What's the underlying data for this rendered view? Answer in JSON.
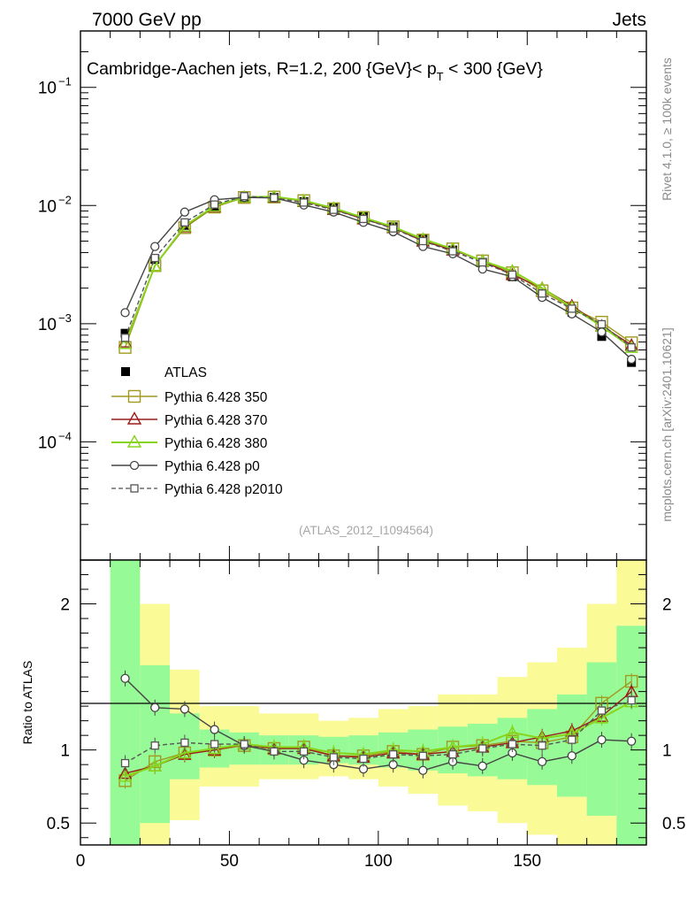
{
  "header": {
    "left": "7000 GeV pp",
    "right": "Jets"
  },
  "side_labels": {
    "rivet": "Rivet 4.1.0, ≥ 100k events",
    "mcplots": "mcplots.cern.ch [arXiv:2401.10621]"
  },
  "colors": {
    "data": "#000000",
    "py350": "#a09a1e",
    "py370": "#9b1a1a",
    "py380": "#86d51a",
    "p0": "#444444",
    "p2010": "#555555",
    "band_green": "#96fa96",
    "band_yellow": "#fafa96"
  },
  "chart_data": [
    {
      "type": "line",
      "title_parts": [
        "Cambridge-Aachen jets, R=1.2,  200 {GeV}< p",
        "T",
        " < 300 {GeV}"
      ],
      "analysis_label": "(ATLAS_2012_I1094564)",
      "yscale": "log",
      "xlim": [
        0,
        190
      ],
      "ylim": [
        1e-05,
        0.3
      ],
      "yticks": [
        {
          "value": 0.0001,
          "base": "10",
          "exp": "−4"
        },
        {
          "value": 0.001,
          "base": "10",
          "exp": "−3"
        },
        {
          "value": 0.01,
          "base": "10",
          "exp": "−2"
        },
        {
          "value": 0.1,
          "base": "10",
          "exp": "−1"
        }
      ],
      "x": [
        15,
        25,
        35,
        45,
        55,
        65,
        75,
        85,
        95,
        105,
        115,
        125,
        135,
        145,
        155,
        165,
        175,
        185
      ],
      "legend": [
        "ATLAS",
        "Pythia 6.428 350",
        "Pythia 6.428 370",
        "Pythia 6.428 380",
        "Pythia 6.428 p0",
        "Pythia 6.428 p2010"
      ],
      "series": [
        {
          "name": "ATLAS",
          "key": "data",
          "marker": "filled-square",
          "values": [
            0.00083,
            0.0035,
            0.0068,
            0.0098,
            0.0114,
            0.0117,
            0.0108,
            0.0097,
            0.0082,
            0.0066,
            0.0052,
            0.0042,
            0.0033,
            0.0025,
            0.0018,
            0.00125,
            0.00078,
            0.00047
          ]
        },
        {
          "name": "Pythia 6.428 350",
          "key": "py350",
          "marker": "open-square",
          "values": [
            0.00063,
            0.0031,
            0.0065,
            0.0097,
            0.0117,
            0.0118,
            0.011,
            0.0094,
            0.0079,
            0.0066,
            0.0051,
            0.0043,
            0.0034,
            0.0027,
            0.0019,
            0.00136,
            0.00103,
            0.00069
          ]
        },
        {
          "name": "Pythia 6.428 370",
          "key": "py370",
          "marker": "open-triangle",
          "values": [
            0.0007,
            0.0031,
            0.0066,
            0.0098,
            0.0118,
            0.0118,
            0.0109,
            0.0093,
            0.0077,
            0.0065,
            0.005,
            0.0042,
            0.0034,
            0.0026,
            0.002,
            0.00142,
            0.00096,
            0.00066
          ]
        },
        {
          "name": "Pythia 6.428 380",
          "key": "py380",
          "marker": "open-triangle",
          "values": [
            0.00068,
            0.0031,
            0.0067,
            0.0099,
            0.0118,
            0.0119,
            0.011,
            0.0095,
            0.0079,
            0.0066,
            0.0052,
            0.0043,
            0.0034,
            0.0028,
            0.002,
            0.00138,
            0.00095,
            0.00063
          ]
        },
        {
          "name": "Pythia 6.428 p0",
          "key": "p0",
          "marker": "open-circle",
          "values": [
            0.00124,
            0.0045,
            0.0088,
            0.0112,
            0.0117,
            0.0116,
            0.0101,
            0.0088,
            0.0072,
            0.006,
            0.0045,
            0.0039,
            0.0029,
            0.0025,
            0.00167,
            0.00121,
            0.00085,
            0.0005
          ]
        },
        {
          "name": "Pythia 6.428 p2010",
          "key": "p2010",
          "marker": "open-square-small",
          "dashed": true,
          "values": [
            0.00076,
            0.0036,
            0.0072,
            0.0102,
            0.012,
            0.0116,
            0.0106,
            0.0092,
            0.0077,
            0.0064,
            0.005,
            0.0041,
            0.0033,
            0.0026,
            0.0018,
            0.00134,
            0.00099,
            0.00063
          ]
        }
      ]
    },
    {
      "type": "line",
      "ylabel": "Ratio to ATLAS",
      "xlim": [
        0,
        190
      ],
      "ylim": [
        0.35,
        2.3
      ],
      "xticks": [
        0,
        50,
        100,
        150
      ],
      "yticks": [
        0.5,
        1,
        2
      ],
      "ytick_labels": [
        "0.5",
        "1",
        "2"
      ],
      "x": [
        15,
        25,
        35,
        45,
        55,
        65,
        75,
        85,
        95,
        105,
        115,
        125,
        135,
        145,
        155,
        165,
        175,
        185
      ],
      "bins": [
        [
          10,
          20
        ],
        [
          20,
          30
        ],
        [
          30,
          40
        ],
        [
          40,
          50
        ],
        [
          50,
          60
        ],
        [
          60,
          70
        ],
        [
          70,
          80
        ],
        [
          80,
          90
        ],
        [
          90,
          100
        ],
        [
          100,
          110
        ],
        [
          110,
          120
        ],
        [
          120,
          130
        ],
        [
          130,
          140
        ],
        [
          140,
          150
        ],
        [
          150,
          160
        ],
        [
          160,
          170
        ],
        [
          170,
          180
        ],
        [
          180,
          190
        ]
      ],
      "band_yellow": [
        [
          0.35,
          2.3
        ],
        [
          0.35,
          2.0
        ],
        [
          0.52,
          1.55
        ],
        [
          0.75,
          1.3
        ],
        [
          0.75,
          1.3
        ],
        [
          0.8,
          1.25
        ],
        [
          0.8,
          1.25
        ],
        [
          0.82,
          1.2
        ],
        [
          0.8,
          1.22
        ],
        [
          0.75,
          1.28
        ],
        [
          0.7,
          1.3
        ],
        [
          0.62,
          1.38
        ],
        [
          0.58,
          1.38
        ],
        [
          0.5,
          1.5
        ],
        [
          0.42,
          1.6
        ],
        [
          0.35,
          1.7
        ],
        [
          0.35,
          2.0
        ],
        [
          0.35,
          2.3
        ]
      ],
      "band_green": [
        [
          0.35,
          2.3
        ],
        [
          0.5,
          1.58
        ],
        [
          0.8,
          1.25
        ],
        [
          0.88,
          1.14
        ],
        [
          0.9,
          1.12
        ],
        [
          0.9,
          1.1
        ],
        [
          0.9,
          1.1
        ],
        [
          0.91,
          1.09
        ],
        [
          0.9,
          1.1
        ],
        [
          0.88,
          1.12
        ],
        [
          0.86,
          1.14
        ],
        [
          0.84,
          1.16
        ],
        [
          0.82,
          1.18
        ],
        [
          0.8,
          1.22
        ],
        [
          0.76,
          1.28
        ],
        [
          0.68,
          1.38
        ],
        [
          0.55,
          1.6
        ],
        [
          0.35,
          1.85
        ]
      ],
      "series": [
        {
          "name": "Pythia 6.428 350",
          "key": "py350",
          "marker": "open-square",
          "values": [
            0.79,
            0.92,
            0.98,
            1.0,
            1.03,
            1.01,
            1.02,
            0.96,
            0.96,
            0.99,
            0.97,
            1.02,
            1.03,
            1.06,
            1.05,
            1.09,
            1.32,
            1.47
          ]
        },
        {
          "name": "Pythia 6.428 370",
          "key": "py370",
          "marker": "open-triangle",
          "values": [
            0.84,
            0.89,
            0.97,
            1.0,
            1.04,
            1.01,
            1.01,
            0.96,
            0.95,
            0.98,
            0.97,
            0.99,
            1.02,
            1.05,
            1.09,
            1.13,
            1.23,
            1.4
          ]
        },
        {
          "name": "Pythia 6.428 380",
          "key": "py380",
          "marker": "open-triangle",
          "values": [
            0.82,
            0.89,
            0.98,
            1.01,
            1.04,
            1.02,
            1.02,
            0.98,
            0.97,
            1.0,
            0.99,
            1.02,
            1.04,
            1.12,
            1.08,
            1.11,
            1.22,
            1.33
          ]
        },
        {
          "name": "Pythia 6.428 p0",
          "key": "p0",
          "marker": "open-circle",
          "values": [
            1.49,
            1.29,
            1.28,
            1.14,
            1.03,
            0.99,
            0.93,
            0.9,
            0.87,
            0.9,
            0.86,
            0.92,
            0.89,
            0.98,
            0.92,
            0.96,
            1.07,
            1.06
          ]
        },
        {
          "name": "Pythia 6.428 p2010",
          "key": "p2010",
          "marker": "open-square-small",
          "dashed": true,
          "values": [
            0.91,
            1.03,
            1.05,
            1.04,
            1.04,
            0.99,
            0.99,
            0.95,
            0.94,
            0.97,
            0.96,
            0.97,
            1.01,
            1.04,
            1.03,
            1.07,
            1.27,
            1.34
          ]
        }
      ]
    }
  ]
}
